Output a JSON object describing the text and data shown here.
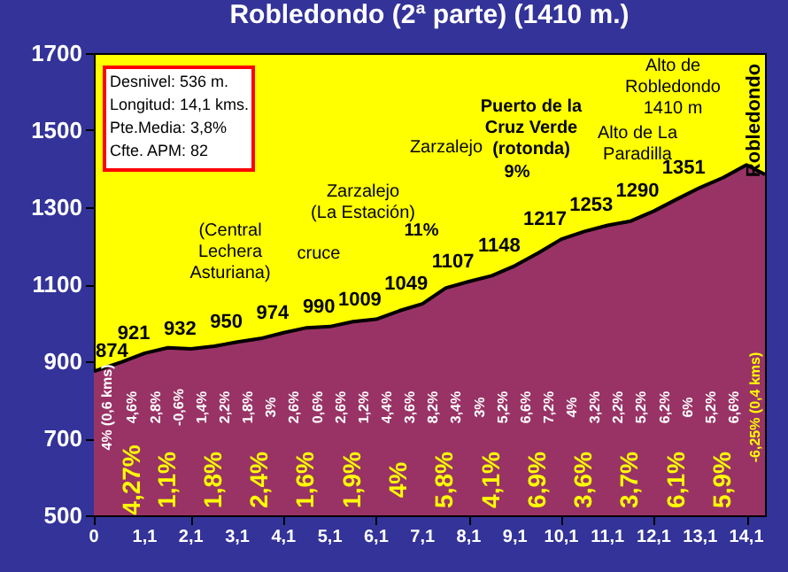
{
  "chart_data": {
    "type": "area",
    "title": "Robledondo (2ª parte) (1410 m.)",
    "x": [
      0,
      0.6,
      1.1,
      1.6,
      2.1,
      2.6,
      3.1,
      3.6,
      4.1,
      4.6,
      5.1,
      5.6,
      6.1,
      6.6,
      7.1,
      7.6,
      8.1,
      8.6,
      9.1,
      9.6,
      10.1,
      10.6,
      11.1,
      11.6,
      12.1,
      12.6,
      13.1,
      13.6,
      14.1,
      14.5
    ],
    "series": [
      {
        "color": "#993366",
        "values": [
          874,
          898,
          921,
          935,
          932,
          939,
          950,
          959,
          974,
          987,
          990,
          1003,
          1009,
          1031,
          1049,
          1090,
          1107,
          1122,
          1148,
          1181,
          1217,
          1237,
          1253,
          1264,
          1290,
          1321,
          1351,
          1377,
          1410,
          1385
        ],
        "value_labels": [
          "874",
          null,
          "921",
          null,
          "932",
          null,
          "950",
          null,
          "974",
          null,
          "990",
          null,
          "1009",
          null,
          "1049",
          null,
          "1107",
          null,
          "1148",
          null,
          "1217",
          null,
          "1253",
          null,
          "1290",
          null,
          "1351",
          null,
          null,
          null
        ]
      }
    ],
    "xlim": [
      0,
      14.5
    ],
    "xticks": [
      0,
      {
        "value": 1.1,
        "label": "1,1"
      },
      {
        "value": 2.1,
        "label": "2,1"
      },
      {
        "value": 3.1,
        "label": "3,1"
      },
      {
        "value": 4.1,
        "label": "4,1"
      },
      {
        "value": 5.1,
        "label": "5,1"
      },
      {
        "value": 6.1,
        "label": "6,1"
      },
      {
        "value": 7.1,
        "label": "7,1"
      },
      {
        "value": 8.1,
        "label": "8,1"
      },
      {
        "value": 9.1,
        "label": "9,1"
      },
      {
        "value": 10.1,
        "label": "10,1"
      },
      {
        "value": 11.1,
        "label": "11,1"
      },
      {
        "value": 12.1,
        "label": "12,1"
      },
      {
        "value": 13.1,
        "label": "13,1"
      },
      {
        "value": 14.1,
        "label": "14,1"
      }
    ],
    "ylim": [
      500,
      1700
    ],
    "yticks": [
      500,
      700,
      900,
      1100,
      1300,
      1500,
      1700
    ],
    "annotations": [
      "Desnivel: 536 m.",
      "Longitud: 14,1 kms.",
      "Pte.Media: 3,8%",
      "Cfte. APM: 82",
      "Robledondo",
      "4% (0,6 kms)",
      "4,6%",
      "2,8%",
      "-0,6%",
      "1,4%",
      "2,2%",
      "1,8%",
      "3%",
      "2,6%",
      "0,6%",
      "2,6%",
      "1,2%",
      "4,4%",
      "3,6%",
      "8,2%",
      "3,4%",
      "3%",
      "5,2%",
      "6,6%",
      "7,2%",
      "4%",
      "3,2%",
      "2,2%",
      "5,2%",
      "6,2%",
      "6%",
      "5,2%",
      "6,6%",
      "-6,25% (0,4 kms)",
      "4,27%",
      "1,1%",
      "1,8%",
      "2,4%",
      "1,6%",
      "1,9%",
      "4%",
      "5,8%",
      "4,1%",
      "6,9%",
      "3,6%",
      "3,7%",
      "6,1%",
      "5,9%",
      "(Central\nLechera\nAsturiana)",
      "cruce",
      "Zarzalejo\n(La Estación)",
      "Zarzalejo",
      "Puerto de la\nCruz Verde\n(rotonda)",
      "Alto de La\nParadilla",
      "Alto de\nRobledondo\n1410 m",
      "9%",
      "11%"
    ]
  }
}
